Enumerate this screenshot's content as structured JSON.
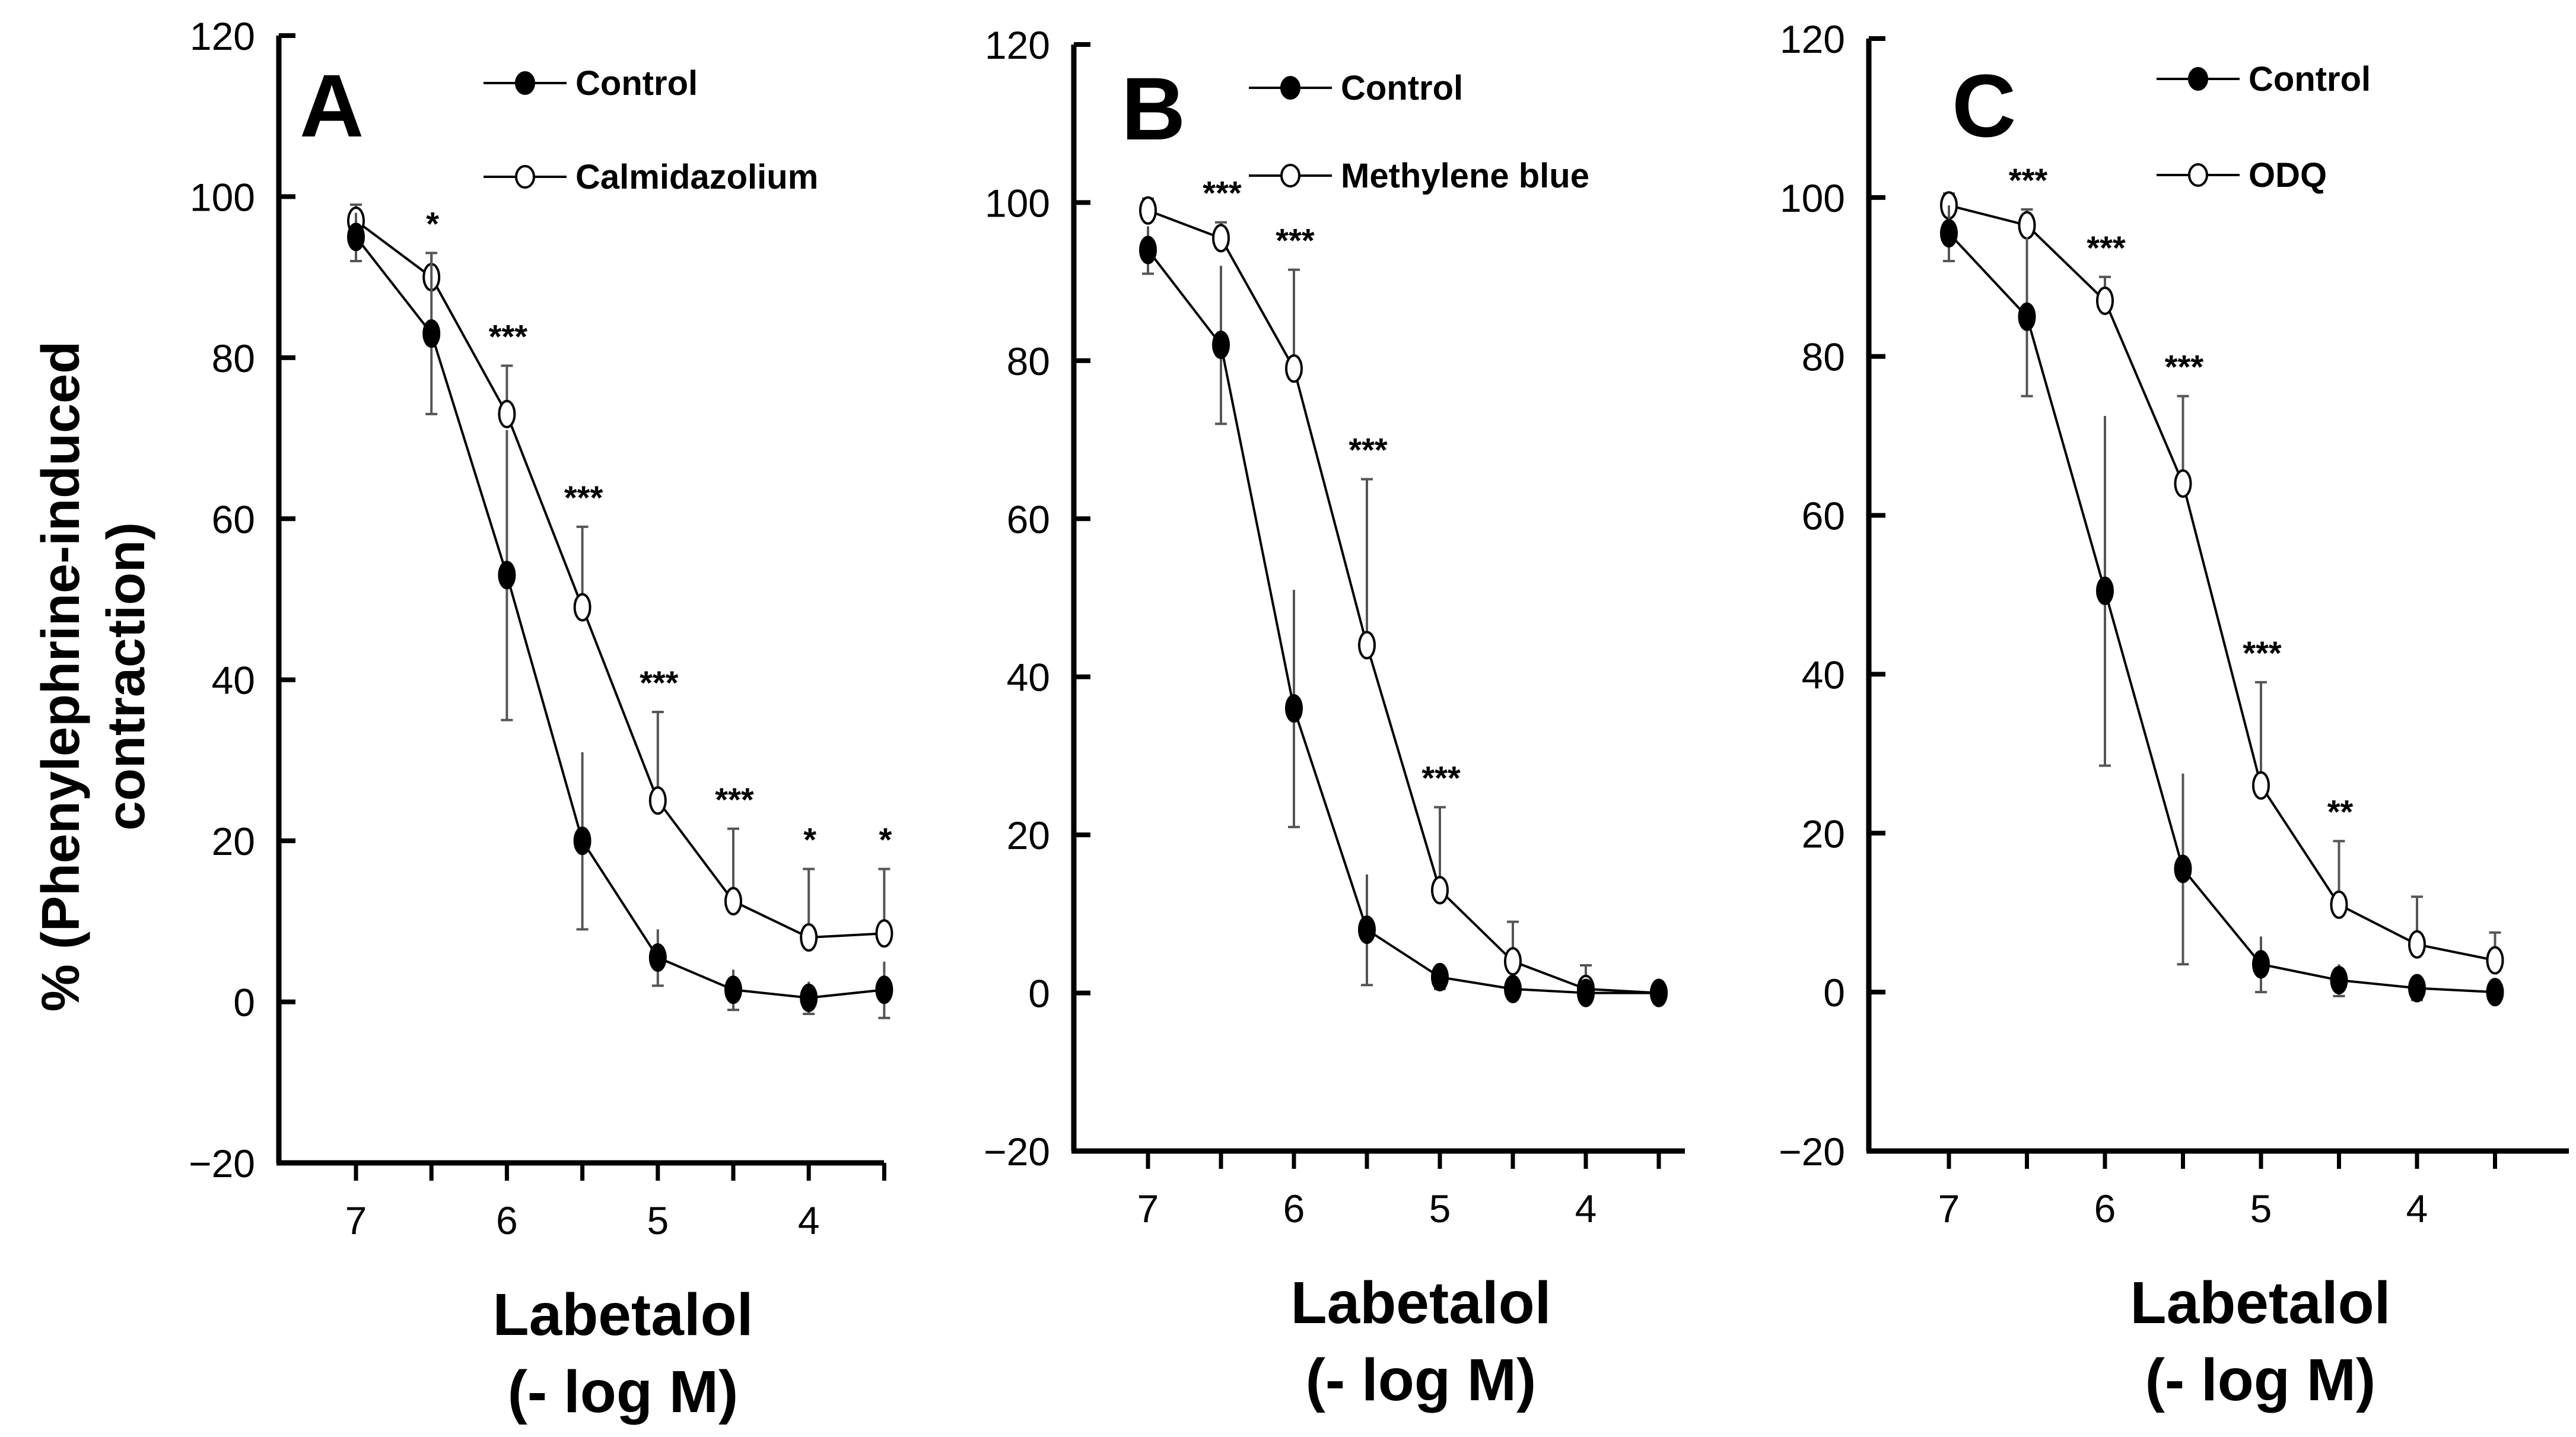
{
  "y_axis_title": [
    "% (Phenylephrine-induced",
    "contraction)"
  ],
  "chart_data": [
    {
      "type": "line",
      "panel": "A",
      "xlabel": [
        "Labetalol",
        "(- log M)"
      ],
      "ylabel": "% (Phenylephrine-induced contraction)",
      "ylim": [
        -20,
        120
      ],
      "yticks": [
        -20,
        0,
        20,
        40,
        60,
        80,
        100,
        120
      ],
      "xticks": [
        7,
        6,
        5,
        4
      ],
      "x": [
        7,
        6.5,
        6,
        5.5,
        5,
        4.5,
        4,
        3.5
      ],
      "series": [
        {
          "name": "Control",
          "marker": "filled",
          "values": [
            95,
            83,
            53,
            20,
            5.5,
            1.5,
            0.5,
            1.5
          ],
          "error": [
            3,
            10,
            18,
            11,
            3.5,
            2.5,
            2,
            3.5
          ]
        },
        {
          "name": "Calmidazolium",
          "marker": "open",
          "values": [
            97,
            90,
            73,
            49,
            25,
            12.5,
            8,
            8.5
          ],
          "error": [
            2,
            3,
            6,
            10,
            11,
            9,
            8.5,
            8
          ]
        }
      ],
      "significance": [
        "",
        "*",
        "***",
        "***",
        "***",
        "***",
        "*",
        "*"
      ]
    },
    {
      "type": "line",
      "panel": "B",
      "xlabel": [
        "Labetalol",
        "(- log M)"
      ],
      "ylabel": "",
      "ylim": [
        -20,
        120
      ],
      "yticks": [
        -20,
        0,
        20,
        40,
        60,
        80,
        100,
        120
      ],
      "xticks": [
        7,
        6,
        5,
        4
      ],
      "x": [
        7,
        6.5,
        6,
        5.5,
        5,
        4.5,
        4,
        3.5
      ],
      "series": [
        {
          "name": "Control",
          "marker": "filled",
          "values": [
            94,
            82,
            36,
            8,
            2,
            0.5,
            0,
            0
          ],
          "error": [
            3,
            10,
            15,
            7,
            1.5,
            1,
            1,
            0.5
          ]
        },
        {
          "name": "Methylene blue",
          "marker": "open",
          "values": [
            99,
            95.5,
            79,
            44,
            13,
            4,
            0.5,
            0
          ],
          "error": [
            1.5,
            2,
            12.5,
            21,
            10.5,
            5,
            3,
            1
          ]
        }
      ],
      "significance": [
        "",
        "***",
        "***",
        "***",
        "***",
        "",
        "",
        ""
      ]
    },
    {
      "type": "line",
      "panel": "C",
      "xlabel": [
        "Labetalol",
        "(- log M)"
      ],
      "ylabel": "",
      "ylim": [
        -20,
        120
      ],
      "yticks": [
        -20,
        0,
        20,
        40,
        60,
        80,
        100,
        120
      ],
      "xticks": [
        7,
        6,
        5,
        4
      ],
      "x": [
        7,
        6.5,
        6,
        5.5,
        5,
        4.5,
        4,
        3.5
      ],
      "series": [
        {
          "name": "Control",
          "marker": "filled",
          "values": [
            95.5,
            85,
            50.5,
            15.5,
            3.5,
            1.5,
            0.5,
            0
          ],
          "error": [
            3.5,
            10,
            22,
            12,
            3.5,
            2,
            1.5,
            1
          ]
        },
        {
          "name": "ODQ",
          "marker": "open",
          "values": [
            99,
            96.5,
            87,
            64,
            26,
            11,
            6,
            4
          ],
          "error": [
            1.5,
            2,
            3,
            11,
            13,
            8,
            6,
            3.5
          ]
        }
      ],
      "significance": [
        "",
        "***",
        "***",
        "***",
        "***",
        "**",
        "",
        ""
      ]
    }
  ]
}
